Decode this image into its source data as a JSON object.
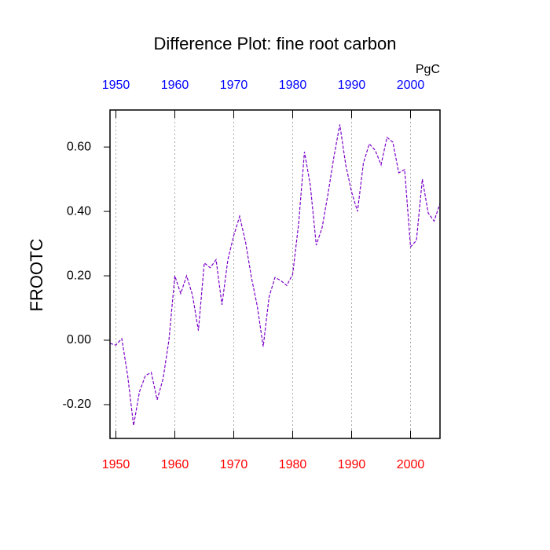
{
  "chart_data": {
    "type": "line",
    "title": "Difference Plot: fine root carbon",
    "ylabel": "FROOTC",
    "units": "PgC",
    "x": [
      1949,
      1950,
      1951,
      1952,
      1953,
      1954,
      1955,
      1956,
      1957,
      1958,
      1959,
      1960,
      1961,
      1962,
      1963,
      1964,
      1965,
      1966,
      1967,
      1968,
      1969,
      1970,
      1971,
      1972,
      1973,
      1974,
      1975,
      1976,
      1977,
      1978,
      1979,
      1980,
      1981,
      1982,
      1983,
      1984,
      1985,
      1986,
      1987,
      1988,
      1989,
      1990,
      1991,
      1992,
      1993,
      1994,
      1995,
      1996,
      1997,
      1998,
      1999,
      2000,
      2001,
      2002,
      2003,
      2004,
      2005
    ],
    "series": [
      {
        "color": "#7a00c8",
        "values": [
          -0.01,
          -0.015,
          0.005,
          -0.11,
          -0.265,
          -0.16,
          -0.11,
          -0.1,
          -0.185,
          -0.12,
          0.0,
          0.2,
          0.145,
          0.2,
          0.14,
          0.03,
          0.24,
          0.225,
          0.25,
          0.11,
          0.25,
          0.325,
          0.385,
          0.305,
          0.195,
          0.105,
          -0.02,
          0.135,
          0.195,
          0.185,
          0.17,
          0.205,
          0.36,
          0.585,
          0.48,
          0.295,
          0.35,
          0.455,
          0.57,
          0.67,
          0.545,
          0.46,
          0.4,
          0.55,
          0.61,
          0.59,
          0.545,
          0.63,
          0.615,
          0.52,
          0.53,
          0.29,
          0.31,
          0.5,
          0.395,
          0.37,
          0.425
        ]
      }
    ],
    "xlim": [
      1949,
      2005
    ],
    "xticks": [
      1950,
      1960,
      1970,
      1980,
      1990,
      2000
    ],
    "ylim": [
      -0.305,
      0.715
    ],
    "yticks": [
      {
        "value": -0.2,
        "label": "-0.20"
      },
      {
        "value": 0,
        "label": "0.00"
      },
      {
        "value": 0.2,
        "label": "0.20"
      },
      {
        "value": 0.4,
        "label": "0.40"
      },
      {
        "value": 0.6,
        "label": "0.60"
      }
    ],
    "top_axis_color": "#0000ff",
    "bottom_axis_color": "#ff0000",
    "grid": true,
    "dashed": true
  }
}
